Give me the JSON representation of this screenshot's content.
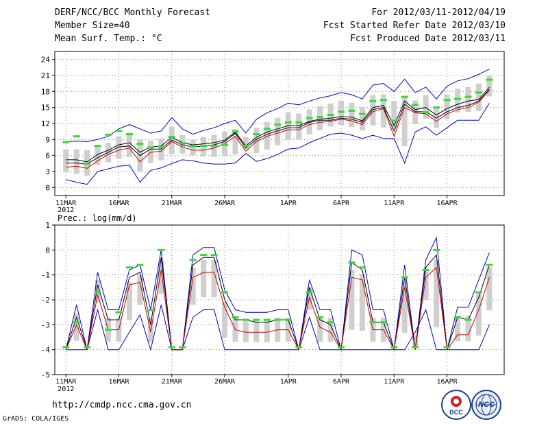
{
  "header": {
    "title": "DERF/NCC/BCC Monthly Forecast",
    "member_size": "Member Size=40",
    "variable": "Mean Surf. Temp.: °C",
    "period": "For 2012/03/11-2012/04/19",
    "started": "Fcst Started Refer Date 2012/03/10",
    "produced": "Fcst Produced Date 2012/03/11"
  },
  "footer": {
    "url": "http://cmdp.ncc.cma.gov.cn",
    "credit": "GrADS: COLA/IGES",
    "logo_bcc": "BCC",
    "logo_ncc": "NCC"
  },
  "colors": {
    "max_min": "#0000cc",
    "mean": "#000000",
    "median": "#cc0000",
    "observed": "#33dd33",
    "spread": "#cfcfcf",
    "grid": "#888888"
  },
  "chart_data": [
    {
      "type": "line",
      "title": "Mean Surf. Temp.: °C",
      "ylim": [
        -1.5,
        25.5
      ],
      "yticks": [
        0,
        3,
        6,
        9,
        12,
        15,
        18,
        21,
        24
      ],
      "xtick_labels": [
        "11MAR",
        "16MAR",
        "21MAR",
        "26MAR",
        "1APR",
        "6APR",
        "11APR",
        "16APR"
      ],
      "xtick_days": [
        1,
        6,
        11,
        16,
        22,
        27,
        32,
        37
      ],
      "year_label": "2012",
      "day_start": 1,
      "series": [
        {
          "name": "max",
          "values": [
            1.5,
            1.0,
            0.6,
            3.0,
            3.5,
            4.0,
            4.2,
            1.0,
            3.2,
            3.7,
            4.5,
            5.2,
            5.0,
            4.6,
            4.4,
            4.4,
            4.6,
            6.4,
            4.9,
            5.4,
            6.2,
            7.2,
            7.4,
            8.4,
            9.2,
            10.0,
            10.2,
            9.8,
            9.2,
            9.8,
            9.2,
            9.2,
            4.6,
            10.4,
            11.4,
            9.8,
            11.2,
            12.6,
            12.6,
            12.6,
            15.8
          ]
        },
        {
          "name": "max",
          "values": [
            8.6,
            8.7,
            8.6,
            9.0,
            9.6,
            11.0,
            11.8,
            11.0,
            10.2,
            10.6,
            13.1,
            11.0,
            10.0,
            10.7,
            11.2,
            12.0,
            12.6,
            10.2,
            12.8,
            14.0,
            14.8,
            15.8,
            15.5,
            16.2,
            16.8,
            17.2,
            17.8,
            17.4,
            16.6,
            19.2,
            19.5,
            18.0,
            20.3,
            17.8,
            18.8,
            16.6,
            19.0,
            20.0,
            20.4,
            21.2,
            22.2
          ]
        },
        {
          "name": "mean",
          "values": [
            5.2,
            5.2,
            4.8,
            6.2,
            7.0,
            8.0,
            8.4,
            6.6,
            7.6,
            7.8,
            9.4,
            8.4,
            8.0,
            8.2,
            8.4,
            8.9,
            10.4,
            7.8,
            9.4,
            10.4,
            11.0,
            11.6,
            11.6,
            12.4,
            12.8,
            13.0,
            13.3,
            13.2,
            12.5,
            15.0,
            15.4,
            11.6,
            16.2,
            14.6,
            15.0,
            13.6,
            14.8,
            15.6,
            16.2,
            16.5,
            18.8
          ]
        },
        {
          "name": "median",
          "values": [
            3.8,
            4.0,
            3.6,
            5.0,
            6.2,
            7.0,
            7.4,
            4.8,
            6.6,
            6.8,
            8.6,
            7.6,
            7.0,
            7.0,
            7.4,
            8.2,
            9.6,
            6.8,
            8.6,
            9.6,
            10.2,
            10.8,
            10.8,
            11.8,
            12.2,
            12.4,
            12.8,
            12.5,
            11.8,
            14.2,
            14.8,
            9.6,
            15.0,
            14.0,
            13.8,
            12.4,
            13.8,
            14.6,
            15.0,
            16.0,
            18.2
          ]
        },
        {
          "name": "mean",
          "values": [
            4.6,
            4.6,
            4.4,
            5.6,
            6.6,
            7.6,
            7.8,
            6.0,
            7.2,
            7.2,
            8.9,
            8.0,
            7.6,
            7.8,
            8.0,
            8.6,
            10.2,
            7.4,
            9.0,
            10.0,
            10.6,
            11.2,
            11.2,
            12.2,
            12.6,
            12.6,
            13.0,
            12.8,
            12.2,
            14.6,
            15.0,
            10.6,
            15.6,
            14.2,
            14.2,
            13.0,
            14.2,
            15.0,
            15.4,
            16.2,
            18.4
          ]
        },
        {
          "name": "observed",
          "values": [
            8.5,
            9.6,
            4.4,
            7.8,
            9.9,
            10.6,
            10.0,
            8.2,
            7.5,
            7.6,
            9.5,
            8.3,
            7.7,
            7.8,
            7.8,
            8.0,
            10.5,
            7.8,
            10.0,
            11.0,
            11.8,
            12.2,
            12.2,
            13.0,
            13.2,
            13.6,
            14.2,
            14.4,
            13.8,
            16.2,
            16.4,
            12.5,
            17.0,
            15.5,
            14.1,
            15.0,
            16.4,
            16.6,
            17.0,
            17.8,
            20.2
          ]
        }
      ]
    },
    {
      "type": "line",
      "title": "Prec.: log(mm/d)",
      "ylim": [
        -5,
        1
      ],
      "yticks": [
        -5,
        -4,
        -3,
        -2,
        -1,
        0,
        1
      ],
      "xtick_labels": [
        "11MAR",
        "16MAR",
        "21MAR",
        "26MAR",
        "1APR",
        "6APR",
        "11APR",
        "16APR"
      ],
      "xtick_days": [
        1,
        6,
        11,
        16,
        22,
        27,
        32,
        37
      ],
      "year_label": "2012",
      "day_start": 1,
      "series": [
        {
          "name": "min",
          "values": [
            -4.0,
            -4.0,
            -4.0,
            -2.4,
            -4.0,
            -4.0,
            -3.3,
            -2.6,
            -4.0,
            -2.2,
            -4.0,
            -4.0,
            -2.7,
            -2.4,
            -2.4,
            -4.0,
            -4.0,
            -4.0,
            -4.0,
            -4.0,
            -4.0,
            -4.0,
            -4.0,
            -2.7,
            -4.0,
            -4.0,
            -4.0,
            -4.0,
            -4.0,
            -4.0,
            -4.0,
            -4.0,
            -4.0,
            -3.3,
            -2.4,
            -4.0,
            -4.0,
            -4.0,
            -4.0,
            -4.0,
            -3.0
          ]
        },
        {
          "name": "max",
          "values": [
            -4.0,
            -2.2,
            -4.0,
            -0.9,
            -2.4,
            -2.4,
            -0.8,
            -0.6,
            -2.4,
            0.0,
            -4.0,
            -4.0,
            -0.2,
            0.1,
            0.1,
            -1.6,
            -2.4,
            -2.5,
            -2.5,
            -2.5,
            -2.4,
            -2.4,
            -4.0,
            -1.2,
            -2.4,
            -2.4,
            -4.0,
            0.0,
            -0.2,
            -2.4,
            -2.4,
            -4.0,
            -0.6,
            -4.0,
            -0.4,
            0.5,
            -4.0,
            -2.3,
            -2.3,
            -1.2,
            -0.1
          ]
        },
        {
          "name": "mean",
          "values": [
            -4.0,
            -2.7,
            -4.0,
            -1.4,
            -2.8,
            -2.8,
            -1.1,
            -0.9,
            -3.0,
            -0.3,
            -4.0,
            -4.0,
            -0.6,
            -0.3,
            -0.3,
            -2.0,
            -2.8,
            -2.8,
            -2.9,
            -2.9,
            -2.8,
            -2.8,
            -4.0,
            -1.5,
            -2.8,
            -3.0,
            -4.0,
            -0.5,
            -0.8,
            -2.9,
            -2.9,
            -4.0,
            -1.1,
            -4.0,
            -0.7,
            -0.2,
            -4.0,
            -2.7,
            -2.8,
            -1.9,
            -0.6
          ]
        },
        {
          "name": "median",
          "values": [
            -4.0,
            -3.0,
            -4.0,
            -1.8,
            -3.2,
            -3.2,
            -1.4,
            -1.3,
            -3.3,
            -0.8,
            -4.0,
            -4.0,
            -1.1,
            -0.9,
            -0.9,
            -2.3,
            -3.2,
            -3.3,
            -3.3,
            -3.3,
            -3.2,
            -3.2,
            -4.0,
            -1.9,
            -3.1,
            -3.3,
            -4.0,
            -1.1,
            -1.2,
            -3.2,
            -3.2,
            -4.0,
            -1.5,
            -4.0,
            -1.1,
            -0.7,
            -4.0,
            -3.4,
            -3.4,
            -2.4,
            -1.1
          ]
        },
        {
          "name": "observed",
          "values": [
            -3.9,
            -2.9,
            -3.9,
            -1.7,
            -3.2,
            -2.5,
            -0.7,
            -0.6,
            -2.4,
            0.0,
            -3.9,
            -3.9,
            -0.4,
            -0.2,
            -0.2,
            -1.7,
            -2.7,
            -2.8,
            -2.8,
            -2.8,
            -2.8,
            -2.8,
            -3.9,
            -1.7,
            -2.7,
            -2.9,
            -3.9,
            -0.5,
            -0.7,
            -2.9,
            -2.9,
            -3.9,
            -1.1,
            -3.9,
            -0.8,
            0.0,
            -3.9,
            -2.7,
            -2.8,
            -1.7,
            -0.6
          ]
        }
      ]
    }
  ]
}
